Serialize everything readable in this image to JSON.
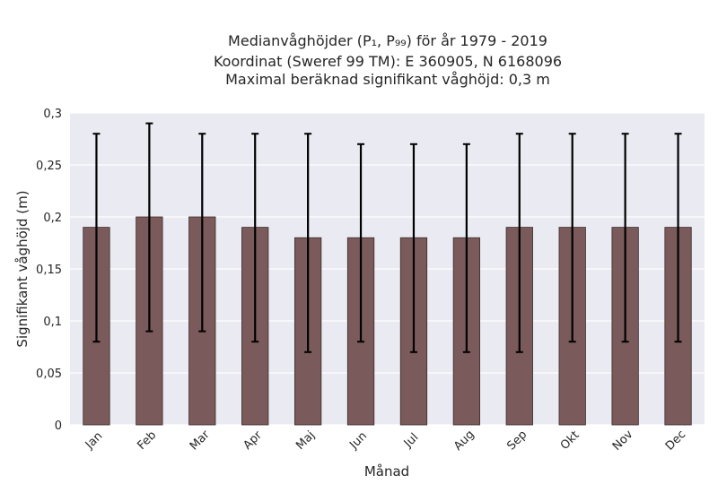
{
  "title_lines": [
    "Medianvåghöjder (P₁, P₉₉) för år 1979 - 2019",
    "Koordinat (Sweref 99 TM): E 360905, N 6168096",
    "Maximal beräknad signifikant våghöjd: 0,3 m"
  ],
  "chart_data": {
    "type": "bar",
    "categories": [
      "Jan",
      "Feb",
      "Mar",
      "Apr",
      "Maj",
      "Jun",
      "Jul",
      "Aug",
      "Sep",
      "Okt",
      "Nov",
      "Dec"
    ],
    "series": [
      {
        "values": [
          0.19,
          0.2,
          0.2,
          0.19,
          0.18,
          0.18,
          0.18,
          0.18,
          0.19,
          0.19,
          0.19,
          0.19
        ],
        "error_low": [
          0.08,
          0.09,
          0.09,
          0.08,
          0.07,
          0.08,
          0.07,
          0.07,
          0.07,
          0.08,
          0.08,
          0.08
        ],
        "error_high": [
          0.28,
          0.29,
          0.28,
          0.28,
          0.28,
          0.27,
          0.27,
          0.27,
          0.28,
          0.28,
          0.28,
          0.28
        ]
      }
    ],
    "xlabel": "Månad",
    "ylabel": "Signifikant våghöjd (m)",
    "ylim": [
      0,
      0.3
    ],
    "yticks": [
      0,
      0.05,
      0.1,
      0.15,
      0.2,
      0.25,
      0.3
    ],
    "ytick_labels": [
      "0",
      "0,05",
      "0,1",
      "0,15",
      "0,2",
      "0,25",
      "0,3"
    ],
    "grid": true,
    "colors": {
      "bar": "#7a5a5a",
      "bar_edge": "#3a2a2a",
      "error": "#000000",
      "plot_bg": "#eaeaf2",
      "grid": "#ffffff"
    }
  }
}
